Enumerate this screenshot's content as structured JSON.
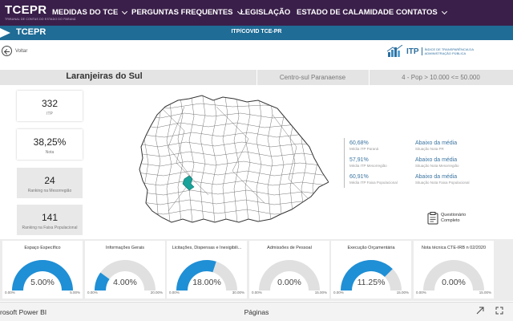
{
  "nav": {
    "logo": "TCEPR",
    "logo_sub": "TRIBUNAL DE CONTAS DO ESTADO DO PARANÁ",
    "items": [
      {
        "label": "MEDIDAS DO TCE",
        "dropdown": true
      },
      {
        "label": "PERGUNTAS FREQUENTES",
        "dropdown": true
      },
      {
        "label": "LEGISLAÇÃO",
        "dropdown": false
      },
      {
        "label": "ESTADO DE CALAMIDADE",
        "dropdown": false
      },
      {
        "label": "CONTATOS",
        "dropdown": true
      }
    ]
  },
  "report_header": {
    "brand": "TCEPR",
    "title": "ITP/COVID TCE-PR"
  },
  "back": {
    "label": "Voltar"
  },
  "itp_logo": {
    "text": "ITP",
    "description": "ÍNDICE DE TRANSPARÊNCIA DA ADMINISTRAÇÃO PÚBLICA"
  },
  "band": {
    "city": "Laranjeiras do Sul",
    "region": "Centro-sul Paranaense",
    "population": "4 - Pop > 10.000 <= 50.000"
  },
  "cards": [
    {
      "value": "332",
      "caption": "ITP",
      "style": "white"
    },
    {
      "value": "38,25%",
      "caption": "Nota",
      "style": "white"
    },
    {
      "value": "24",
      "caption": "Ranking na Mesorregião",
      "style": "gray"
    },
    {
      "value": "141",
      "caption": "Ranking na Faixa Populacional",
      "style": "gray"
    }
  ],
  "stats": [
    {
      "value": "60,68%",
      "caption": "Média ITP Paraná",
      "situation": "Abaixo da média",
      "situation_caption": "Situação Nota PR"
    },
    {
      "value": "57,91%",
      "caption": "Média ITP Mesorregião",
      "situation": "Abaixo da média",
      "situation_caption": "Situação Nota Mesorregião"
    },
    {
      "value": "60,91%",
      "caption": "Média ITP Faixa Populacional",
      "situation": "Abaixo da média",
      "situation_caption": "Situação Nota Faixa Populacional"
    }
  ],
  "questionnaire": {
    "label": "Questionário Completo"
  },
  "gauges": [
    {
      "title": "Espaço Específico",
      "value_text": "5.00%",
      "value": 5,
      "max": 5,
      "min_label": "0.00%",
      "max_label": "5.00%"
    },
    {
      "title": "Informações Gerais",
      "value_text": "4.00%",
      "value": 4,
      "max": 20,
      "min_label": "0.00%",
      "max_label": "20.00%"
    },
    {
      "title": "Licitações, Dispensas e Inexigibili...",
      "value_text": "18.00%",
      "value": 18,
      "max": 30,
      "min_label": "0.00%",
      "max_label": "30.00%"
    },
    {
      "title": "Admissões de Pessoal",
      "value_text": "0.00%",
      "value": 0,
      "max": 15,
      "min_label": "0.00%",
      "max_label": "15.00%"
    },
    {
      "title": "Execução Orçamentária",
      "value_text": "11.25%",
      "value": 11.25,
      "max": 15,
      "min_label": "0.00%",
      "max_label": "15.00%"
    },
    {
      "title": "Nota técnica CTE-IRB n 02/2020",
      "value_text": "0.00%",
      "value": 0,
      "max": 15,
      "min_label": "0.00%",
      "max_label": "15.00%"
    }
  ],
  "footer": {
    "app": "rosoft Power BI",
    "pages": "Páginas"
  },
  "colors": {
    "nav_bg": "#3a1f4a",
    "header_bg": "#1f6c96",
    "gauge_fill": "#1f8fd6",
    "gauge_track": "#e0e0e0",
    "highlight": "#1aa39a"
  }
}
